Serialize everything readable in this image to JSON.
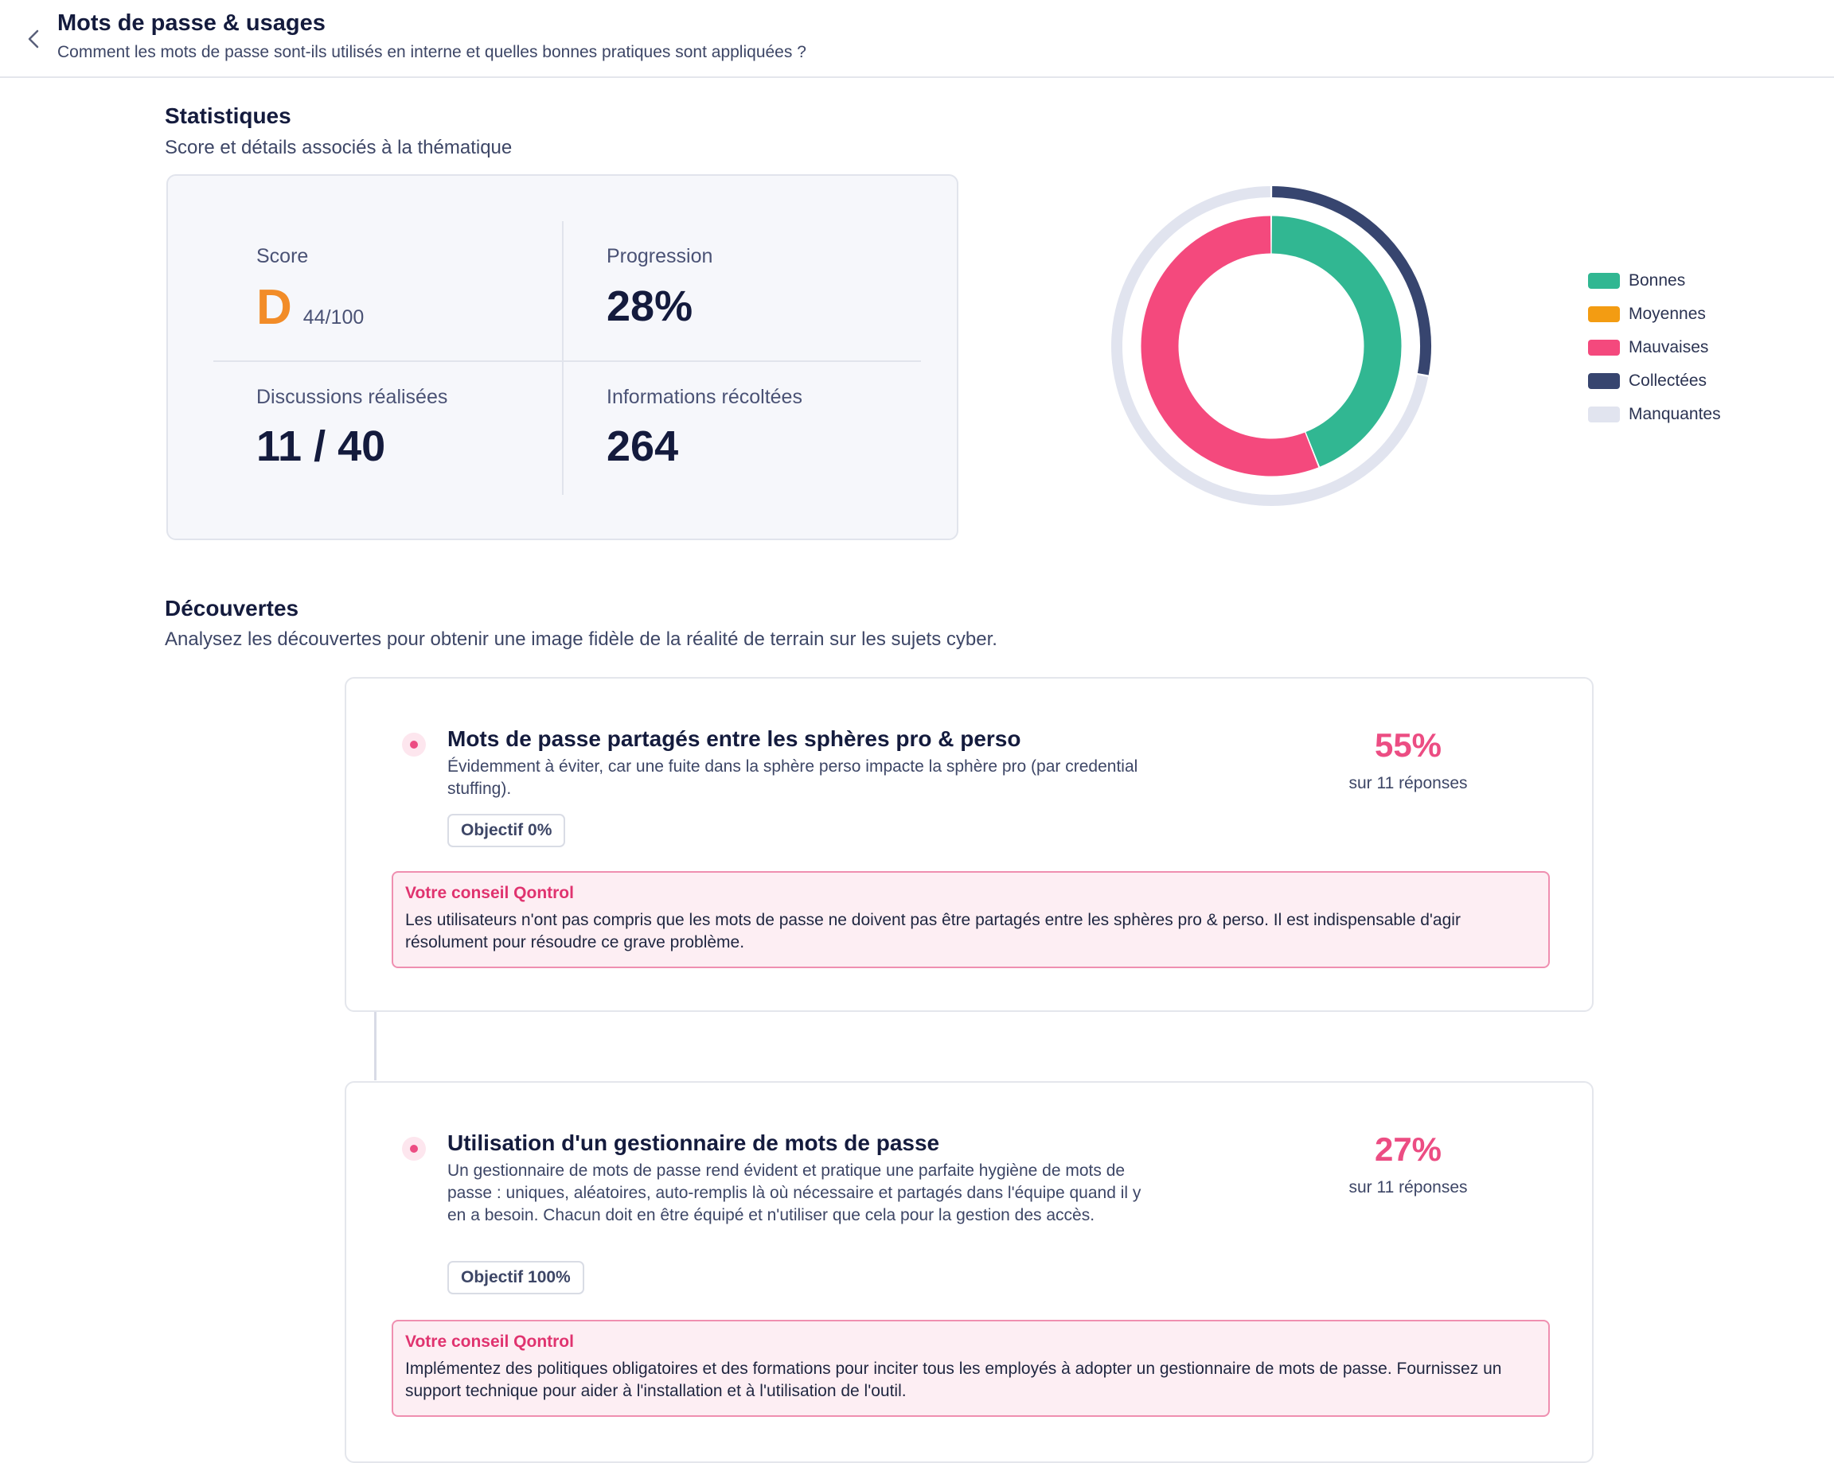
{
  "header": {
    "title": "Mots de passe & usages",
    "subtitle": "Comment les mots de passe sont-ils utilisés en interne et quelles bonnes pratiques sont appliquées ?",
    "back_icon": "chevron-left-icon"
  },
  "stats": {
    "title": "Statistiques",
    "subtitle": "Score et détails associés à la thématique",
    "score": {
      "label": "Score",
      "grade": "D",
      "value": "44/100",
      "grade_color": "#f28c28"
    },
    "progression": {
      "label": "Progression",
      "value": "28%"
    },
    "discussions": {
      "label": "Discussions réalisées",
      "value": "11 / 40"
    },
    "informations": {
      "label": "Informations récoltées",
      "value": "264"
    }
  },
  "chart_data": {
    "type": "pie",
    "rings": [
      {
        "ring": "inner",
        "series": [
          {
            "name": "Bonnes",
            "value": 44,
            "color": "#31b792"
          },
          {
            "name": "Moyennes",
            "value": 0,
            "color": "#f39c12"
          },
          {
            "name": "Mauvaises",
            "value": 56,
            "color": "#f4497d"
          }
        ]
      },
      {
        "ring": "outer",
        "series": [
          {
            "name": "Collectées",
            "value": 28,
            "color": "#37456f"
          },
          {
            "name": "Manquantes",
            "value": 72,
            "color": "#e1e4ef"
          }
        ]
      }
    ],
    "legend": [
      "Bonnes",
      "Moyennes",
      "Mauvaises",
      "Collectées",
      "Manquantes"
    ],
    "legend_position": "right"
  },
  "discoveries": {
    "title": "Découvertes",
    "subtitle": "Analysez les découvertes pour obtenir une image fidèle de la réalité de terrain sur les sujets cyber.",
    "items": [
      {
        "title": "Mots de passe partagés entre les sphères pro & perso",
        "description": "Évidemment à éviter, car une fuite dans la sphère perso impacte la sphère pro (par credential stuffing).",
        "objective": "Objectif 0%",
        "percent": "55%",
        "responses": "sur 11 réponses",
        "advice_title": "Votre conseil Qontrol",
        "advice": "Les utilisateurs n'ont pas compris que les mots de passe ne doivent pas être partagés entre les sphères pro & perso. Il est indispensable d'agir résolument pour résoudre ce grave problème."
      },
      {
        "title": "Utilisation d'un gestionnaire de mots de passe",
        "description": "Un gestionnaire de mots de passe rend évident et pratique une parfaite hygiène de mots de passe : uniques, aléatoires, auto-remplis là où nécessaire et partagés dans l'équipe quand il y en a besoin. Chacun doit en être équipé et n'utiliser que cela pour la gestion des accès.",
        "objective": "Objectif 100%",
        "percent": "27%",
        "responses": "sur 11 réponses",
        "advice_title": "Votre conseil Qontrol",
        "advice": "Implémentez des politiques obligatoires et des formations pour inciter tous les employés à adopter un gestionnaire de mots de passe. Fournissez un support technique pour aider à l'installation et à l'utilisation de l'outil."
      }
    ]
  }
}
